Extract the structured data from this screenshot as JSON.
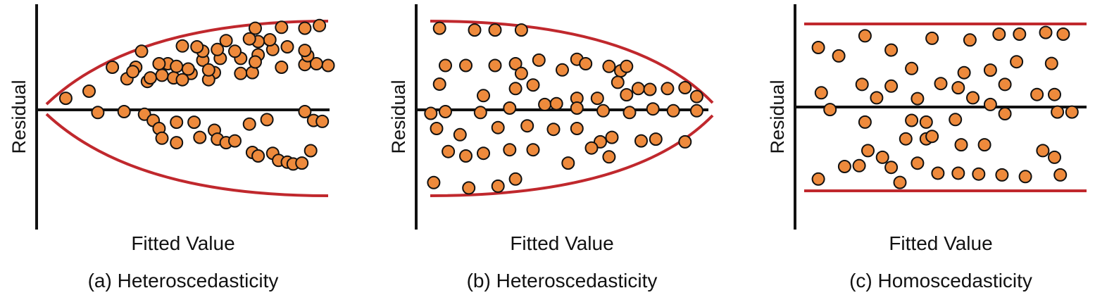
{
  "colors": {
    "axis": "#111111",
    "envelope": "#c0282d",
    "point_fill": "#ee8a3c",
    "point_stroke": "#111111",
    "background": "#ffffff"
  },
  "chart_data": [
    {
      "type": "scatter",
      "title": "(a) Heteroscedasticity",
      "xlabel": "Fitted Value",
      "ylabel": "Residual",
      "envelope": "fan-out",
      "xlim": [
        0,
        100
      ],
      "ylim": [
        -100,
        100
      ],
      "grid": false,
      "points": [
        [
          10,
          13
        ],
        [
          18,
          21
        ],
        [
          31,
          35
        ],
        [
          38,
          32
        ],
        [
          47,
          36
        ],
        [
          53,
          41
        ],
        [
          61,
          42
        ],
        [
          70,
          41
        ],
        [
          74,
          42
        ],
        [
          84,
          48
        ],
        [
          92,
          51
        ],
        [
          100,
          50
        ],
        [
          96,
          52
        ],
        [
          93,
          61
        ],
        [
          92,
          67
        ],
        [
          81,
          68
        ],
        [
          80,
          79
        ],
        [
          76,
          77
        ],
        [
          70,
          58
        ],
        [
          63,
          58
        ],
        [
          57,
          56
        ],
        [
          57,
          66
        ],
        [
          65,
          78
        ],
        [
          73,
          80
        ],
        [
          75,
          92
        ],
        [
          86,
          71
        ],
        [
          84,
          93
        ],
        [
          92,
          92
        ],
        [
          97,
          95
        ],
        [
          34,
          48
        ],
        [
          39,
          36
        ],
        [
          43,
          39
        ],
        [
          50,
          34
        ],
        [
          59,
          34
        ],
        [
          59,
          45
        ],
        [
          52,
          46
        ],
        [
          45,
          52
        ],
        [
          33,
          43
        ],
        [
          26,
          48
        ],
        [
          36,
          66
        ],
        [
          42,
          52
        ],
        [
          48,
          49
        ],
        [
          50,
          72
        ],
        [
          55,
          71
        ],
        [
          62,
          68
        ],
        [
          68,
          66
        ],
        [
          76,
          62
        ],
        [
          75,
          54
        ],
        [
          21,
          -3
        ],
        [
          30,
          -2
        ],
        [
          37,
          -5
        ],
        [
          40,
          -12
        ],
        [
          42,
          -21
        ],
        [
          48,
          -14
        ],
        [
          54,
          -14
        ],
        [
          61,
          -23
        ],
        [
          73,
          -16
        ],
        [
          79,
          -11
        ],
        [
          92,
          -2
        ],
        [
          95,
          -12
        ],
        [
          98,
          -13
        ],
        [
          94,
          -46
        ],
        [
          43,
          -32
        ],
        [
          48,
          -37
        ],
        [
          56,
          -31
        ],
        [
          62,
          -33
        ],
        [
          65,
          -37
        ],
        [
          68,
          -35
        ],
        [
          74,
          -48
        ],
        [
          76,
          -52
        ],
        [
          81,
          -49
        ],
        [
          83,
          -57
        ],
        [
          86,
          -59
        ],
        [
          88,
          -61
        ],
        [
          91,
          -60
        ]
      ]
    },
    {
      "type": "scatter",
      "title": "(b) Heteroscedasticity",
      "xlabel": "Fitted Value",
      "ylabel": "Residual",
      "envelope": "bowtie",
      "xlim": [
        0,
        100
      ],
      "ylim": [
        -100,
        100
      ],
      "grid": false,
      "points": [
        [
          8,
          92
        ],
        [
          20,
          90
        ],
        [
          27,
          90
        ],
        [
          36,
          90
        ],
        [
          10,
          50
        ],
        [
          17,
          50
        ],
        [
          27,
          50
        ],
        [
          34,
          52
        ],
        [
          42,
          56
        ],
        [
          36,
          41
        ],
        [
          50,
          45
        ],
        [
          55,
          57
        ],
        [
          58,
          52
        ],
        [
          66,
          49
        ],
        [
          70,
          44
        ],
        [
          72,
          49
        ],
        [
          8,
          29
        ],
        [
          23,
          16
        ],
        [
          34,
          24
        ],
        [
          40,
          28
        ],
        [
          55,
          13
        ],
        [
          62,
          13
        ],
        [
          69,
          31
        ],
        [
          76,
          24
        ],
        [
          80,
          23
        ],
        [
          86,
          24
        ],
        [
          92,
          25
        ],
        [
          96,
          15
        ],
        [
          72,
          17
        ],
        [
          5,
          -4
        ],
        [
          10,
          -2
        ],
        [
          22,
          -3
        ],
        [
          32,
          2
        ],
        [
          44,
          6
        ],
        [
          48,
          7
        ],
        [
          55,
          2
        ],
        [
          64,
          -1
        ],
        [
          73,
          -3
        ],
        [
          81,
          1
        ],
        [
          88,
          -1
        ],
        [
          96,
          -1
        ],
        [
          7,
          -21
        ],
        [
          15,
          -28
        ],
        [
          28,
          -20
        ],
        [
          38,
          -18
        ],
        [
          47,
          -22
        ],
        [
          55,
          -21
        ],
        [
          63,
          -36
        ],
        [
          67,
          -31
        ],
        [
          77,
          -35
        ],
        [
          82,
          -33
        ],
        [
          92,
          -36
        ],
        [
          11,
          -47
        ],
        [
          17,
          -52
        ],
        [
          23,
          -49
        ],
        [
          32,
          -45
        ],
        [
          40,
          -45
        ],
        [
          52,
          -60
        ],
        [
          60,
          -43
        ],
        [
          66,
          -53
        ],
        [
          6,
          -82
        ],
        [
          18,
          -88
        ],
        [
          28,
          -86
        ],
        [
          34,
          -78
        ]
      ]
    },
    {
      "type": "scatter",
      "title": "(c) Homoscedasticity",
      "xlabel": "Fitted Value",
      "ylabel": "Residual",
      "envelope": "parallel-band",
      "xlim": [
        0,
        100
      ],
      "ylim": [
        -100,
        100
      ],
      "grid": false,
      "points": [
        [
          8,
          71
        ],
        [
          15,
          61
        ],
        [
          24,
          85
        ],
        [
          33,
          68
        ],
        [
          47,
          82
        ],
        [
          60,
          80
        ],
        [
          70,
          87
        ],
        [
          77,
          87
        ],
        [
          86,
          89
        ],
        [
          92,
          87
        ],
        [
          40,
          46
        ],
        [
          58,
          41
        ],
        [
          67,
          44
        ],
        [
          76,
          54
        ],
        [
          88,
          52
        ],
        [
          72,
          27
        ],
        [
          61,
          11
        ],
        [
          56,
          23
        ],
        [
          50,
          28
        ],
        [
          42,
          10
        ],
        [
          33,
          25
        ],
        [
          28,
          11
        ],
        [
          23,
          27
        ],
        [
          9,
          17
        ],
        [
          83,
          15
        ],
        [
          89,
          15
        ],
        [
          90,
          -6
        ],
        [
          95,
          -6
        ],
        [
          72,
          -8
        ],
        [
          67,
          3
        ],
        [
          55,
          -15
        ],
        [
          45,
          -18
        ],
        [
          40,
          -16
        ],
        [
          12,
          -3
        ],
        [
          24,
          -18
        ],
        [
          38,
          -38
        ],
        [
          45,
          -38
        ],
        [
          47,
          -35
        ],
        [
          57,
          -45
        ],
        [
          65,
          -45
        ],
        [
          85,
          -52
        ],
        [
          89,
          -60
        ],
        [
          25,
          -52
        ],
        [
          30,
          -60
        ],
        [
          42,
          -67
        ],
        [
          17,
          -71
        ],
        [
          22,
          -70
        ],
        [
          33,
          -72
        ],
        [
          49,
          -79
        ],
        [
          56,
          -79
        ],
        [
          63,
          -80
        ],
        [
          71,
          -81
        ],
        [
          79,
          -83
        ],
        [
          91,
          -81
        ],
        [
          36,
          -90
        ],
        [
          8,
          -86
        ]
      ]
    }
  ]
}
